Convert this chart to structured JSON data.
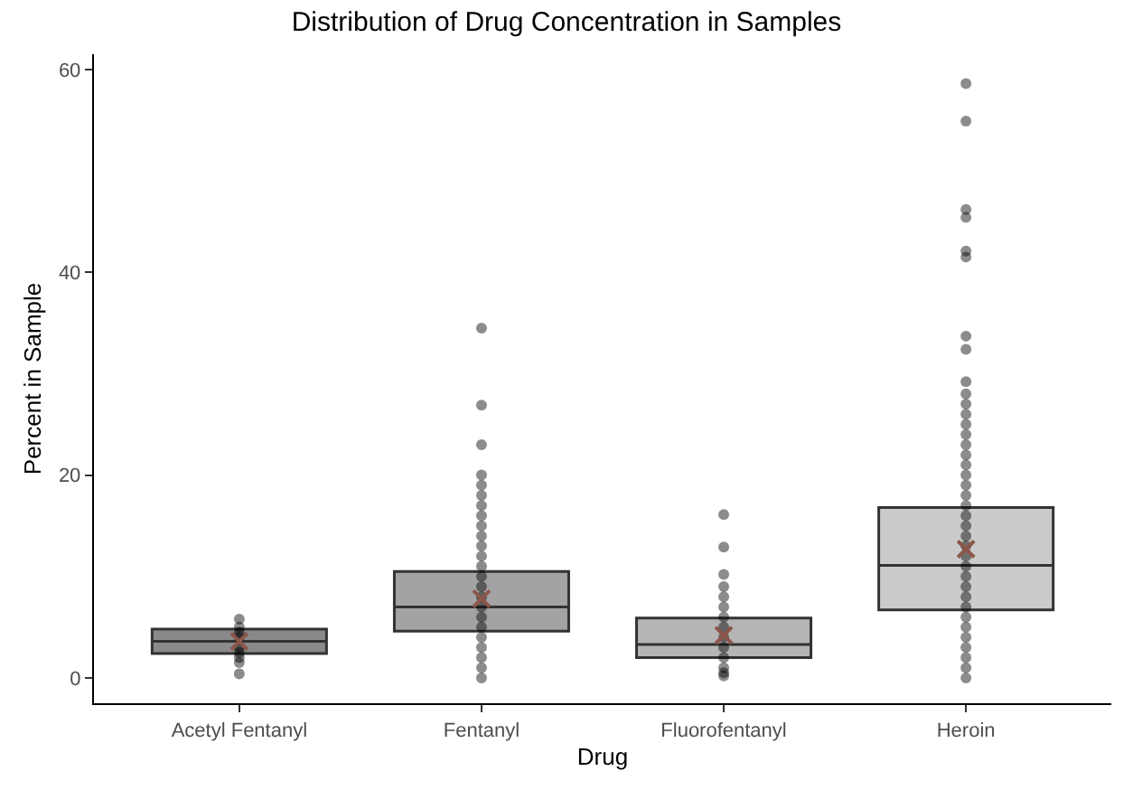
{
  "chart_data": {
    "type": "box",
    "title": "Distribution of Drug Concentration in Samples",
    "xlabel": "Drug",
    "ylabel": "Percent in Sample",
    "categories": [
      "Acetyl Fentanyl",
      "Fentanyl",
      "Fluorofentanyl",
      "Heroin"
    ],
    "colors": [
      "#8a8a8a",
      "#a3a3a3",
      "#b5b5b5",
      "#cbcbcb"
    ],
    "boxes": [
      {
        "q1": 2.4,
        "median": 3.6,
        "q3": 4.8,
        "mean": 3.6
      },
      {
        "q1": 4.6,
        "median": 7.0,
        "q3": 10.5,
        "mean": 7.8
      },
      {
        "q1": 2.0,
        "median": 3.3,
        "q3": 5.9,
        "mean": 4.2
      },
      {
        "q1": 6.7,
        "median": 11.1,
        "q3": 16.8,
        "mean": 12.7
      }
    ],
    "series": [
      {
        "type": "scatter",
        "color": "#000000",
        "x": [
          "Acetyl Fentanyl",
          "Acetyl Fentanyl",
          "Acetyl Fentanyl",
          "Acetyl Fentanyl",
          "Acetyl Fentanyl",
          "Acetyl Fentanyl",
          "Acetyl Fentanyl",
          "Acetyl Fentanyl",
          "Acetyl Fentanyl",
          "Fentanyl",
          "Fentanyl",
          "Fentanyl",
          "Fentanyl",
          "Fentanyl",
          "Fentanyl",
          "Fentanyl",
          "Fentanyl",
          "Fentanyl",
          "Fentanyl",
          "Fentanyl",
          "Fentanyl",
          "Fentanyl",
          "Fentanyl",
          "Fentanyl",
          "Fentanyl",
          "Fentanyl",
          "Fentanyl",
          "Fentanyl",
          "Fentanyl",
          "Fentanyl",
          "Fentanyl",
          "Fentanyl",
          "Fentanyl",
          "Fluorofentanyl",
          "Fluorofentanyl",
          "Fluorofentanyl",
          "Fluorofentanyl",
          "Fluorofentanyl",
          "Fluorofentanyl",
          "Fluorofentanyl",
          "Fluorofentanyl",
          "Fluorofentanyl",
          "Fluorofentanyl",
          "Fluorofentanyl",
          "Fluorofentanyl",
          "Fluorofentanyl",
          "Fluorofentanyl",
          "Heroin",
          "Heroin",
          "Heroin",
          "Heroin",
          "Heroin",
          "Heroin",
          "Heroin",
          "Heroin",
          "Heroin",
          "Heroin",
          "Heroin",
          "Heroin",
          "Heroin",
          "Heroin",
          "Heroin",
          "Heroin",
          "Heroin",
          "Heroin",
          "Heroin",
          "Heroin",
          "Heroin",
          "Heroin",
          "Heroin",
          "Heroin",
          "Heroin",
          "Heroin",
          "Heroin",
          "Heroin",
          "Heroin",
          "Heroin",
          "Heroin",
          "Heroin",
          "Heroin",
          "Heroin",
          "Heroin",
          "Heroin",
          "Heroin",
          "Heroin"
        ],
        "values": [
          0.4,
          1.5,
          2,
          2.5,
          3,
          4,
          4.5,
          5,
          5.8,
          0,
          1,
          2,
          3,
          4,
          5,
          6,
          7,
          8,
          9,
          10,
          11,
          12,
          13,
          14,
          15,
          16,
          17,
          18,
          19,
          20,
          23,
          26.9,
          34.5,
          0.2,
          1,
          2,
          3,
          4,
          5,
          6,
          7,
          8,
          9,
          10.2,
          12.9,
          16.1,
          0.5,
          0,
          1,
          2,
          3,
          4,
          5,
          6,
          7,
          8,
          9,
          10,
          11,
          12,
          13,
          14,
          15,
          16,
          17,
          18,
          19,
          20,
          21,
          22,
          23,
          24,
          25,
          26,
          27,
          28,
          29.2,
          32.4,
          33.7,
          41.5,
          42.1,
          45.4,
          46.2,
          54.9,
          58.6
        ]
      }
    ],
    "ylim": [
      -2.5,
      61.5
    ],
    "yticks": [
      0,
      20,
      40,
      60
    ],
    "grid": false,
    "marker": "circle"
  }
}
